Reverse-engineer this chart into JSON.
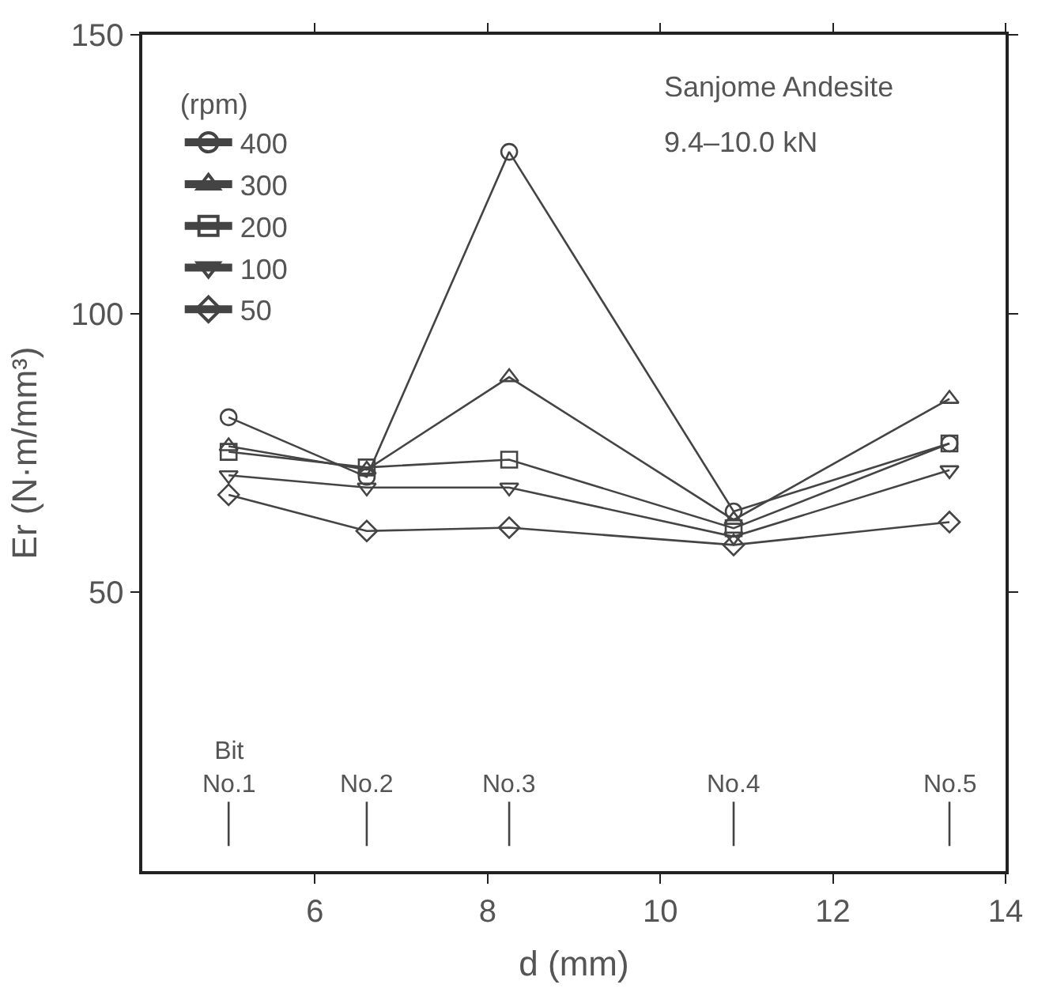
{
  "chart_data": {
    "type": "line",
    "xlabel": "d (mm)",
    "ylabel": "Er (N·m/mm³)",
    "legend_title": "(rpm)",
    "x": [
      5.0,
      6.6,
      8.25,
      10.85,
      13.35
    ],
    "series": [
      {
        "name": "400",
        "color": "#444444",
        "marker": "circle",
        "values": [
          81.4,
          70.7,
          129,
          64.5,
          76.7
        ]
      },
      {
        "name": "300",
        "color": "#444444",
        "marker": "triangle",
        "values": [
          76.2,
          72,
          88.6,
          63,
          84.7
        ]
      },
      {
        "name": "200",
        "color": "#444444",
        "marker": "square",
        "values": [
          75.2,
          72.4,
          73.8,
          61.5,
          76.7
        ]
      },
      {
        "name": "100",
        "color": "#444444",
        "marker": "triangle-down",
        "values": [
          71,
          68.8,
          68.8,
          60,
          71.9
        ]
      },
      {
        "name": "50",
        "color": "#444444",
        "marker": "diamond",
        "values": [
          67.5,
          61,
          61.6,
          58.5,
          62.6
        ]
      }
    ],
    "xlim": [
      4,
      14
    ],
    "xticks": [
      6,
      8,
      10,
      12,
      14
    ],
    "ylim": [
      0,
      150
    ],
    "yticks": [
      50,
      100,
      150
    ],
    "grid": false,
    "legend": "top left",
    "line_style": "solid",
    "annotations": [
      "Sanjome Andesite",
      "9.4–10.0 kN",
      "Bit\nNo.1",
      "No.2",
      "No.3",
      "No.4",
      "No.5"
    ]
  }
}
